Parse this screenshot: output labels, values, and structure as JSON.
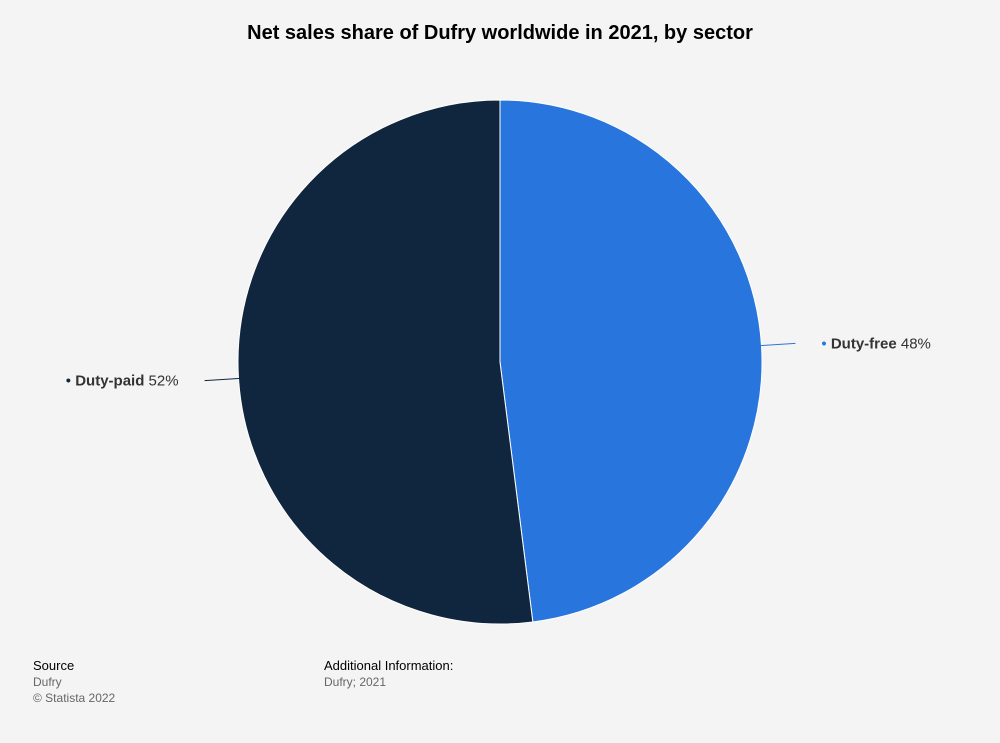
{
  "colors": {
    "duty_free": "#2876dd",
    "duty_paid": "#10263e",
    "background": "#f4f4f4"
  },
  "chart_data": {
    "type": "pie",
    "title": "Net sales share of Dufry worldwide in 2021, by sector",
    "unit": "%",
    "slices": [
      {
        "label": "Duty-free",
        "value": 48,
        "value_label": "48%",
        "color": "#2876dd"
      },
      {
        "label": "Duty-paid",
        "value": 52,
        "value_label": "52%",
        "color": "#10263e"
      }
    ],
    "start": "12 o'clock, clockwise",
    "legend": "none (labels placed beside slices)"
  },
  "footer": {
    "source_heading": "Source",
    "source_name": "Dufry",
    "copyright": "© Statista 2022",
    "additional_heading": "Additional Information:",
    "additional_text": "Dufry; 2021"
  }
}
